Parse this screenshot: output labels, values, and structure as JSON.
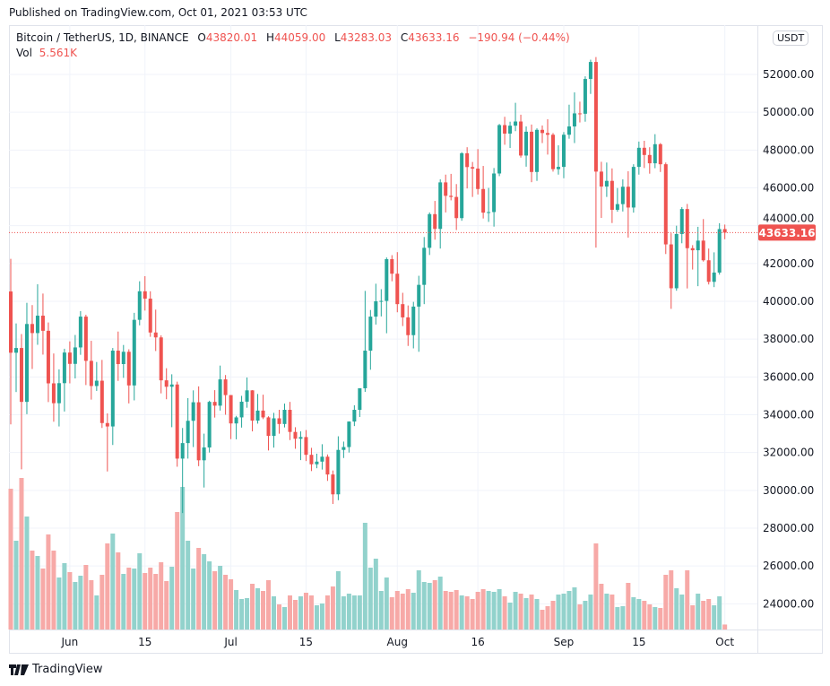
{
  "published": "Published on TradingView.com, Oct 01, 2021 03:53 UTC",
  "legend": {
    "symbol": "Bitcoin / TetherUS, 1D, BINANCE",
    "o_label": "O",
    "o": "43820.01",
    "h_label": "H",
    "h": "44059.00",
    "l_label": "L",
    "l": "43283.03",
    "c_label": "C",
    "c": "43633.16",
    "change": "−190.94 (−0.44%)",
    "vol_label": "Vol",
    "vol": "5.561K"
  },
  "currency_badge": "USDT",
  "brand": "TradingView",
  "colors": {
    "up": "#26a69a",
    "down": "#ef5350",
    "up_volume": "#92d2cc",
    "down_volume": "#f7a9a7",
    "grid": "#f0f3fa"
  },
  "chart_data": {
    "type": "candlestick",
    "title": "Bitcoin / TetherUS, 1D, BINANCE",
    "ylim": [
      23000,
      54500
    ],
    "y_ticks": [
      "24000.00",
      "26000.00",
      "28000.00",
      "30000.00",
      "32000.00",
      "34000.00",
      "36000.00",
      "38000.00",
      "40000.00",
      "42000.00",
      "44000.00",
      "46000.00",
      "48000.00",
      "50000.00",
      "52000.00"
    ],
    "y_tick_values": [
      24000,
      26000,
      28000,
      30000,
      32000,
      34000,
      36000,
      38000,
      40000,
      42000,
      44000,
      46000,
      48000,
      50000,
      52000
    ],
    "x_ticks": [
      {
        "label": "Jun",
        "date": "2021-06-01"
      },
      {
        "label": "15",
        "date": "2021-06-15"
      },
      {
        "label": "Jul",
        "date": "2021-07-01"
      },
      {
        "label": "15",
        "date": "2021-07-15"
      },
      {
        "label": "Aug",
        "date": "2021-08-01"
      },
      {
        "label": "16",
        "date": "2021-08-16"
      },
      {
        "label": "Sep",
        "date": "2021-09-01"
      },
      {
        "label": "15",
        "date": "2021-09-15"
      },
      {
        "label": "Oct",
        "date": "2021-10-01"
      }
    ],
    "last_price": 43633.16,
    "last_price_label": "43633.16",
    "grid": true,
    "columns": [
      "date",
      "open",
      "high",
      "low",
      "close",
      "volume_K"
    ],
    "candles": [
      [
        "2021-05-21",
        40520,
        42250,
        33490,
        37280,
        157
      ],
      [
        "2021-05-22",
        37280,
        38830,
        35200,
        37530,
        99
      ],
      [
        "2021-05-23",
        37530,
        38270,
        31110,
        34680,
        169
      ],
      [
        "2021-05-24",
        34680,
        39920,
        34030,
        38800,
        126
      ],
      [
        "2021-05-25",
        38800,
        39800,
        36420,
        38320,
        88
      ],
      [
        "2021-05-26",
        38320,
        40900,
        37700,
        39240,
        82
      ],
      [
        "2021-05-27",
        39240,
        40410,
        37180,
        38440,
        68
      ],
      [
        "2021-05-28",
        38440,
        38880,
        34670,
        35660,
        106
      ],
      [
        "2021-05-29",
        35660,
        37240,
        33630,
        34610,
        88
      ],
      [
        "2021-05-30",
        34610,
        36400,
        33380,
        35670,
        58
      ],
      [
        "2021-05-31",
        35670,
        37490,
        34170,
        37290,
        74
      ],
      [
        "2021-06-01",
        37290,
        37880,
        35660,
        36690,
        64
      ],
      [
        "2021-06-02",
        36690,
        38220,
        35920,
        37560,
        53
      ],
      [
        "2021-06-03",
        37560,
        39480,
        37170,
        39190,
        60
      ],
      [
        "2021-06-04",
        39190,
        39290,
        35570,
        36850,
        72
      ],
      [
        "2021-06-05",
        36850,
        37910,
        34800,
        35520,
        55
      ],
      [
        "2021-06-06",
        35520,
        36790,
        35260,
        35800,
        38
      ],
      [
        "2021-06-07",
        35800,
        36900,
        33300,
        33560,
        61
      ],
      [
        "2021-06-08",
        33560,
        34070,
        31000,
        33380,
        96
      ],
      [
        "2021-06-09",
        33380,
        37530,
        32400,
        37390,
        107
      ],
      [
        "2021-06-10",
        37390,
        38400,
        35790,
        36680,
        86
      ],
      [
        "2021-06-11",
        36680,
        37690,
        35950,
        37330,
        62
      ],
      [
        "2021-06-12",
        37330,
        37460,
        34600,
        35550,
        69
      ],
      [
        "2021-06-13",
        35550,
        39390,
        34760,
        39020,
        68
      ],
      [
        "2021-06-14",
        39020,
        41060,
        38730,
        40530,
        85
      ],
      [
        "2021-06-15",
        40530,
        41330,
        39510,
        40140,
        63
      ],
      [
        "2021-06-16",
        40140,
        40530,
        38120,
        38350,
        69
      ],
      [
        "2021-06-17",
        38350,
        39560,
        37370,
        38090,
        62
      ],
      [
        "2021-06-18",
        38090,
        38200,
        35130,
        35820,
        75
      ],
      [
        "2021-06-19",
        35820,
        36460,
        34820,
        35480,
        54
      ],
      [
        "2021-06-20",
        35480,
        36140,
        33340,
        35600,
        70
      ],
      [
        "2021-06-21",
        35600,
        35750,
        31250,
        31680,
        131
      ],
      [
        "2021-06-22",
        31680,
        33300,
        28800,
        32500,
        159
      ],
      [
        "2021-06-23",
        32500,
        34880,
        31680,
        33680,
        99
      ],
      [
        "2021-06-24",
        33680,
        35290,
        32290,
        34660,
        68
      ],
      [
        "2021-06-25",
        34660,
        35500,
        31280,
        31590,
        91
      ],
      [
        "2021-06-26",
        31590,
        33000,
        30150,
        32270,
        84
      ],
      [
        "2021-06-27",
        32270,
        34740,
        32000,
        34680,
        76
      ],
      [
        "2021-06-28",
        34680,
        35300,
        33850,
        34480,
        65
      ],
      [
        "2021-06-29",
        34480,
        36600,
        34220,
        35870,
        71
      ],
      [
        "2021-06-30",
        35870,
        36100,
        34000,
        35040,
        61
      ],
      [
        "2021-07-01",
        35040,
        35040,
        32710,
        33540,
        56
      ],
      [
        "2021-07-02",
        33540,
        33940,
        32700,
        33860,
        44
      ],
      [
        "2021-07-03",
        33860,
        35000,
        33320,
        34690,
        34
      ],
      [
        "2021-07-04",
        34690,
        35970,
        34370,
        35290,
        35
      ],
      [
        "2021-07-05",
        35290,
        35300,
        33120,
        33690,
        51
      ],
      [
        "2021-07-06",
        33690,
        35100,
        33530,
        34220,
        46
      ],
      [
        "2021-07-07",
        34220,
        35060,
        33770,
        33860,
        43
      ],
      [
        "2021-07-08",
        33860,
        33920,
        32110,
        32880,
        55
      ],
      [
        "2021-07-09",
        32880,
        34100,
        32260,
        33810,
        37
      ],
      [
        "2021-07-10",
        33810,
        34260,
        33000,
        33510,
        28
      ],
      [
        "2021-07-11",
        33510,
        34590,
        33330,
        34260,
        25
      ],
      [
        "2021-07-12",
        34260,
        34680,
        32660,
        33090,
        38
      ],
      [
        "2021-07-13",
        33090,
        33340,
        32200,
        32730,
        33
      ],
      [
        "2021-07-14",
        32730,
        33120,
        31600,
        32820,
        37
      ],
      [
        "2021-07-15",
        32820,
        33190,
        31550,
        31880,
        41
      ],
      [
        "2021-07-16",
        31880,
        32250,
        31020,
        31380,
        38
      ],
      [
        "2021-07-17",
        31380,
        31940,
        31170,
        31520,
        27
      ],
      [
        "2021-07-18",
        31520,
        32440,
        31100,
        31780,
        29
      ],
      [
        "2021-07-19",
        31780,
        31900,
        30500,
        30840,
        38
      ],
      [
        "2021-07-20",
        30840,
        31050,
        29280,
        29790,
        48
      ],
      [
        "2021-07-21",
        29790,
        32860,
        29480,
        32140,
        65
      ],
      [
        "2021-07-22",
        32140,
        32580,
        31710,
        32290,
        37
      ],
      [
        "2021-07-23",
        32290,
        33650,
        32000,
        33640,
        40
      ],
      [
        "2021-07-24",
        33640,
        34500,
        33400,
        34260,
        38
      ],
      [
        "2021-07-25",
        34260,
        35400,
        33880,
        35400,
        38
      ],
      [
        "2021-07-26",
        35400,
        40550,
        35210,
        37390,
        119
      ],
      [
        "2021-07-27",
        37390,
        39540,
        36380,
        39190,
        69
      ],
      [
        "2021-07-28",
        39190,
        40930,
        38770,
        40000,
        79
      ],
      [
        "2021-07-29",
        40000,
        40640,
        39200,
        40020,
        43
      ],
      [
        "2021-07-30",
        40020,
        42320,
        38310,
        42230,
        58
      ],
      [
        "2021-07-31",
        42230,
        42440,
        41060,
        41460,
        36
      ],
      [
        "2021-08-01",
        41460,
        42600,
        39420,
        39850,
        43
      ],
      [
        "2021-08-02",
        39850,
        40450,
        38690,
        39150,
        40
      ],
      [
        "2021-08-03",
        39150,
        39780,
        37640,
        38210,
        45
      ],
      [
        "2021-08-04",
        38210,
        39970,
        37510,
        39720,
        41
      ],
      [
        "2021-08-05",
        39720,
        41350,
        37330,
        40870,
        66
      ],
      [
        "2021-08-06",
        40870,
        43400,
        39850,
        42830,
        53
      ],
      [
        "2021-08-07",
        42830,
        44700,
        42450,
        44610,
        52
      ],
      [
        "2021-08-08",
        44610,
        45310,
        43260,
        43830,
        55
      ],
      [
        "2021-08-09",
        43830,
        46450,
        42790,
        46290,
        59
      ],
      [
        "2021-08-10",
        46290,
        46700,
        44700,
        45580,
        43
      ],
      [
        "2021-08-11",
        45580,
        46740,
        45340,
        45520,
        42
      ],
      [
        "2021-08-12",
        45520,
        46200,
        43770,
        44400,
        44
      ],
      [
        "2021-08-13",
        44400,
        47890,
        44260,
        47830,
        38
      ],
      [
        "2021-08-14",
        47830,
        48150,
        45970,
        47100,
        37
      ],
      [
        "2021-08-15",
        47100,
        47370,
        45520,
        47020,
        34
      ],
      [
        "2021-08-16",
        47020,
        48050,
        45650,
        45940,
        42
      ],
      [
        "2021-08-17",
        45940,
        47160,
        44380,
        44690,
        45
      ],
      [
        "2021-08-18",
        44690,
        46000,
        44200,
        44720,
        43
      ],
      [
        "2021-08-19",
        44720,
        47050,
        43950,
        46760,
        42
      ],
      [
        "2021-08-20",
        46760,
        49380,
        46620,
        49320,
        45
      ],
      [
        "2021-08-21",
        49320,
        49760,
        48280,
        48870,
        37
      ],
      [
        "2021-08-22",
        48870,
        49500,
        48110,
        49290,
        30
      ],
      [
        "2021-08-23",
        49290,
        50500,
        49000,
        49510,
        42
      ],
      [
        "2021-08-24",
        49510,
        49870,
        47600,
        47710,
        40
      ],
      [
        "2021-08-25",
        47710,
        49250,
        47120,
        48970,
        35
      ],
      [
        "2021-08-26",
        48970,
        49350,
        46300,
        46840,
        39
      ],
      [
        "2021-08-27",
        46840,
        49150,
        46370,
        49070,
        34
      ],
      [
        "2021-08-28",
        49070,
        49300,
        48370,
        48900,
        22
      ],
      [
        "2021-08-29",
        48900,
        49630,
        47760,
        48810,
        26
      ],
      [
        "2021-08-30",
        48810,
        48900,
        46860,
        46990,
        32
      ],
      [
        "2021-08-31",
        46990,
        48250,
        46700,
        47110,
        39
      ],
      [
        "2021-09-01",
        47110,
        48950,
        46510,
        48810,
        40
      ],
      [
        "2021-09-02",
        48810,
        50400,
        48600,
        49250,
        43
      ],
      [
        "2021-09-03",
        49250,
        51050,
        48370,
        49940,
        47
      ],
      [
        "2021-09-04",
        49940,
        50560,
        49460,
        49920,
        28
      ],
      [
        "2021-09-05",
        49920,
        51900,
        49500,
        51760,
        32
      ],
      [
        "2021-09-06",
        51760,
        52780,
        50970,
        52660,
        39
      ],
      [
        "2021-09-07",
        52660,
        52920,
        42840,
        46860,
        96
      ],
      [
        "2021-09-08",
        46860,
        47380,
        44410,
        46070,
        51
      ],
      [
        "2021-09-09",
        46070,
        47340,
        45520,
        46370,
        40
      ],
      [
        "2021-09-10",
        46370,
        47030,
        44140,
        44840,
        39
      ],
      [
        "2021-09-11",
        44840,
        45990,
        44740,
        45140,
        25
      ],
      [
        "2021-09-12",
        45140,
        46450,
        44750,
        46060,
        26
      ],
      [
        "2021-09-13",
        46060,
        46880,
        43370,
        44960,
        52
      ],
      [
        "2021-09-14",
        44960,
        47250,
        44690,
        47110,
        36
      ],
      [
        "2021-09-15",
        47110,
        48450,
        46700,
        48120,
        34
      ],
      [
        "2021-09-16",
        48120,
        48490,
        47050,
        47740,
        32
      ],
      [
        "2021-09-17",
        47740,
        48150,
        46750,
        47300,
        28
      ],
      [
        "2021-09-18",
        47300,
        48840,
        47040,
        48310,
        25
      ],
      [
        "2021-09-19",
        48310,
        48370,
        46840,
        47250,
        24
      ],
      [
        "2021-09-20",
        47250,
        47340,
        42500,
        43010,
        61
      ],
      [
        "2021-09-21",
        43010,
        43600,
        39600,
        40690,
        66
      ],
      [
        "2021-09-22",
        40690,
        44000,
        40560,
        43560,
        46
      ],
      [
        "2021-09-23",
        43560,
        44980,
        43070,
        44880,
        39
      ],
      [
        "2021-09-24",
        44880,
        45150,
        40680,
        42810,
        66
      ],
      [
        "2021-09-25",
        42810,
        42970,
        41680,
        42700,
        27
      ],
      [
        "2021-09-26",
        42700,
        43940,
        40800,
        43210,
        40
      ],
      [
        "2021-09-27",
        43210,
        44350,
        42100,
        42170,
        32
      ],
      [
        "2021-09-28",
        42170,
        42790,
        40890,
        41030,
        34
      ],
      [
        "2021-09-29",
        41030,
        42590,
        40750,
        41520,
        27
      ],
      [
        "2021-09-30",
        41520,
        44130,
        41410,
        43820,
        37
      ],
      [
        "2021-10-01",
        43820.01,
        44059.0,
        43283.03,
        43633.16,
        5.561
      ]
    ]
  }
}
